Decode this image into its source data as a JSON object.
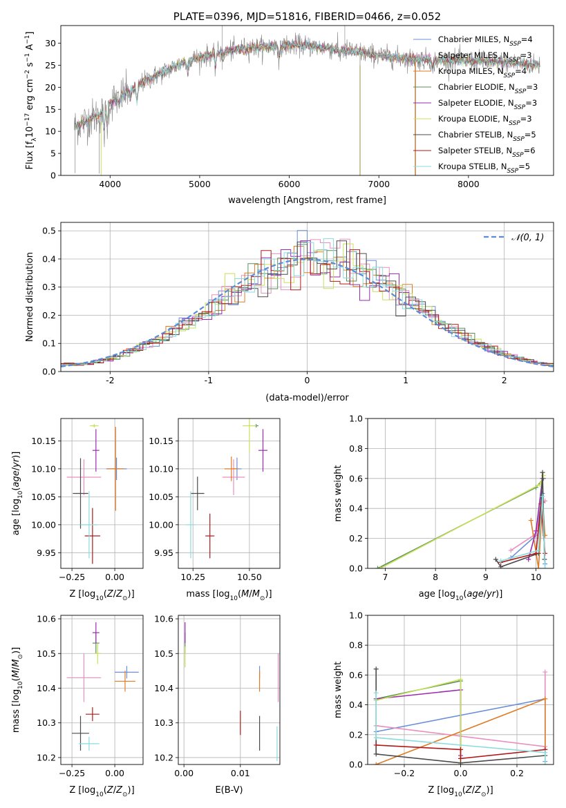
{
  "chart_data": [
    {
      "id": "spectrum",
      "type": "line",
      "title": "PLATE=0396, MJD=51816, FIBERID=0466, z=0.052",
      "xlabel": "wavelength [Angstrom, rest frame]",
      "ylabel": "Flux [f",
      "ylabel_parts": [
        "Flux [f",
        "λ",
        "10",
        "−17",
        " erg cm",
        "−2",
        " s",
        "−1",
        " A",
        "−1",
        "]"
      ],
      "xlim": [
        3450,
        8950
      ],
      "ylim": [
        0,
        34
      ],
      "xticks": [
        4000,
        5000,
        6000,
        7000,
        8000
      ],
      "yticks": [
        0,
        5,
        10,
        15,
        20,
        25,
        30
      ],
      "continuum_anchors": [
        [
          3600,
          11
        ],
        [
          3800,
          13
        ],
        [
          3900,
          14
        ],
        [
          4000,
          16.5
        ],
        [
          4200,
          19
        ],
        [
          4400,
          21.5
        ],
        [
          4600,
          23.5
        ],
        [
          4800,
          25.5
        ],
        [
          5000,
          26.8
        ],
        [
          5200,
          27.8
        ],
        [
          5500,
          28.8
        ],
        [
          5800,
          29.3
        ],
        [
          6100,
          29.6
        ],
        [
          6400,
          29.0
        ],
        [
          6700,
          28.2
        ],
        [
          7000,
          27.2
        ],
        [
          7300,
          26.5
        ],
        [
          7600,
          26.2
        ],
        [
          8000,
          26.0
        ],
        [
          8400,
          25.6
        ],
        [
          8800,
          25.0
        ]
      ],
      "absorption_features": [
        [
          3933,
          5
        ],
        [
          3968,
          4
        ],
        [
          4101,
          2.5
        ],
        [
          4227,
          2
        ],
        [
          4300,
          4
        ],
        [
          4861,
          2
        ],
        [
          5175,
          3
        ],
        [
          5270,
          1.5
        ],
        [
          5890,
          3
        ],
        [
          6563,
          1.5
        ],
        [
          7600,
          2.5
        ]
      ],
      "legend": [
        {
          "label": "Chabrier MILES, N",
          "sub": "SSP",
          "value": "=4",
          "color": "#6a8fd8"
        },
        {
          "label": "Salpeter MILES, N",
          "sub": "SSP",
          "value": "=3",
          "color": "#e88fbf"
        },
        {
          "label": "Kroupa MILES, N",
          "sub": "SSP",
          "value": "=4",
          "color": "#e07b25"
        },
        {
          "label": "Chabrier ELODIE, N",
          "sub": "SSP",
          "value": "=3",
          "color": "#5a8f5a"
        },
        {
          "label": "Salpeter ELODIE, N",
          "sub": "SSP",
          "value": "=3",
          "color": "#9a2ab0"
        },
        {
          "label": "Kroupa ELODIE, N",
          "sub": "SSP",
          "value": "=3",
          "color": "#c8e05a"
        },
        {
          "label": "Chabrier STELIB, N",
          "sub": "SSP",
          "value": "=5",
          "color": "#4a4a4a"
        },
        {
          "label": "Salpeter STELIB, N",
          "sub": "SSP",
          "value": "=6",
          "color": "#b01818"
        },
        {
          "label": "Kroupa STELIB, N",
          "sub": "SSP",
          "value": "=5",
          "color": "#8adcdc"
        }
      ],
      "legend_position": "upper right"
    },
    {
      "id": "residuals",
      "type": "histogram",
      "xlabel": "(data-model)/error",
      "ylabel": "Normed distribution",
      "xlim": [
        -2.5,
        2.5
      ],
      "ylim": [
        0,
        0.53
      ],
      "xticks": [
        -2,
        -1,
        0,
        1,
        2
      ],
      "yticks": [
        0.0,
        0.1,
        0.2,
        0.3,
        0.4,
        0.5
      ],
      "bin_width": 0.1,
      "reference_label": "𝒩(0, 1)",
      "reference_color": "#5b8bd6",
      "legend_position": "upper right",
      "grid": true
    },
    {
      "id": "age-vs-Z",
      "type": "errorbar",
      "xlabel": "Z [log10(Z/Z⊙)]",
      "ylabel": "age  [log10(age/yr)]",
      "xlim": [
        -0.315,
        0.165
      ],
      "ylim": [
        9.922,
        10.19
      ],
      "xticks": [
        -0.25,
        0.0
      ],
      "xtick_labels": [
        "−0.25",
        "0.00"
      ],
      "yticks": [
        9.95,
        10.0,
        10.05,
        10.1,
        10.15
      ],
      "yticklabels": [
        "9.95",
        "10.00",
        "10.05",
        "10.10",
        "10.15"
      ],
      "points": [
        {
          "x": 0.01,
          "y": 10.1,
          "xerr": 0.06,
          "yerr": 0.02,
          "color": "#6a8fd8"
        },
        {
          "x": -0.18,
          "y": 10.085,
          "xerr": 0.1,
          "yerr": 0.032,
          "color": "#e88fbf"
        },
        {
          "x": 0.005,
          "y": 10.1,
          "xerr": 0.05,
          "yerr": 0.075,
          "color": "#e07b25"
        },
        {
          "x": -0.12,
          "y": 10.177,
          "xerr": 0.01,
          "yerr": 0.0,
          "color": "#5a8f5a"
        },
        {
          "x": -0.11,
          "y": 10.133,
          "xerr": 0.02,
          "yerr": 0.038,
          "color": "#9a2ab0"
        },
        {
          "x": -0.12,
          "y": 10.177,
          "xerr": 0.025,
          "yerr": 0.003,
          "color": "#c8e05a"
        },
        {
          "x": -0.2,
          "y": 10.056,
          "xerr": 0.045,
          "yerr": 0.063,
          "color": "#4a4a4a"
        },
        {
          "x": -0.13,
          "y": 9.98,
          "xerr": 0.045,
          "yerr": 0.05,
          "color": "#b01818"
        },
        {
          "x": -0.15,
          "y": 10.0,
          "xerr": 0.05,
          "yerr": 0.06,
          "color": "#8adcdc"
        }
      ]
    },
    {
      "id": "age-vs-mass",
      "type": "errorbar",
      "xlabel": "mass [log10(M/M⊙)]",
      "ylabel": "",
      "xlim": [
        10.185,
        10.635
      ],
      "ylim": [
        9.922,
        10.19
      ],
      "xticks": [
        10.25,
        10.5
      ],
      "xtick_labels": [
        "10.25",
        "10.50"
      ],
      "yticks": [
        9.95,
        10.0,
        10.05,
        10.1,
        10.15
      ],
      "yticklabels": [
        "9.95",
        "10.00",
        "10.05",
        "10.10",
        "10.15"
      ],
      "points": [
        {
          "x": 10.445,
          "y": 10.1,
          "xerr": 0.02,
          "yerr": 0.02,
          "color": "#6a8fd8"
        },
        {
          "x": 10.43,
          "y": 10.085,
          "xerr": 0.05,
          "yerr": 0.032,
          "color": "#e88fbf"
        },
        {
          "x": 10.42,
          "y": 10.1,
          "xerr": 0.03,
          "yerr": 0.022,
          "color": "#e07b25"
        },
        {
          "x": 10.53,
          "y": 10.177,
          "xerr": 0.01,
          "yerr": 0.003,
          "color": "#5a8f5a"
        },
        {
          "x": 10.56,
          "y": 10.133,
          "xerr": 0.02,
          "yerr": 0.038,
          "color": "#9a2ab0"
        },
        {
          "x": 10.5,
          "y": 10.177,
          "xerr": 0.03,
          "yerr": 0.047,
          "color": "#c8e05a"
        },
        {
          "x": 10.27,
          "y": 10.056,
          "xerr": 0.03,
          "yerr": 0.03,
          "color": "#4a4a4a"
        },
        {
          "x": 10.325,
          "y": 9.98,
          "xerr": 0.02,
          "yerr": 0.04,
          "color": "#b01818"
        },
        {
          "x": 10.24,
          "y": 10.0,
          "xerr": 0.02,
          "yerr": 0.06,
          "color": "#8adcdc"
        }
      ]
    },
    {
      "id": "mass-weight-vs-age",
      "type": "line",
      "xlabel": "age  [log10(age/yr)]",
      "ylabel": "mass weight",
      "xlim": [
        6.65,
        10.35
      ],
      "ylim": [
        0,
        1
      ],
      "xticks": [
        7,
        8,
        9,
        10
      ],
      "xtick_labels": [
        "7",
        "8",
        "9",
        "10"
      ],
      "yticks": [
        0.0,
        0.2,
        0.4,
        0.6,
        0.8,
        1.0
      ],
      "series": [
        {
          "color": "#6a8fd8",
          "points": [
            [
              9.5,
              0.07
            ],
            [
              10.0,
              0.22
            ],
            [
              10.13,
              0.5
            ],
            [
              10.18,
              0.03
            ]
          ]
        },
        {
          "color": "#e88fbf",
          "points": [
            [
              9.5,
              0.12
            ],
            [
              10.0,
              0.23
            ],
            [
              10.13,
              0.44
            ],
            [
              10.18,
              0.45
            ]
          ]
        },
        {
          "color": "#e07b25",
          "points": [
            [
              9.9,
              0.32
            ],
            [
              10.05,
              0.0
            ],
            [
              10.13,
              0.44
            ],
            [
              10.18,
              0.22
            ]
          ]
        },
        {
          "color": "#5a8f5a",
          "points": [
            [
              6.85,
              0.0
            ],
            [
              10.0,
              0.54
            ],
            [
              10.15,
              0.6
            ]
          ]
        },
        {
          "color": "#9a2ab0",
          "points": [
            [
              9.85,
              0.06
            ],
            [
              10.0,
              0.25
            ],
            [
              10.13,
              0.6
            ]
          ]
        },
        {
          "color": "#c8e05a",
          "points": [
            [
              6.9,
              0.0
            ],
            [
              10.08,
              0.56
            ],
            [
              10.15,
              0.62
            ]
          ]
        },
        {
          "color": "#4a4a4a",
          "points": [
            [
              9.2,
              0.06
            ],
            [
              9.3,
              0.01
            ],
            [
              10.05,
              0.1
            ],
            [
              10.13,
              0.64
            ],
            [
              10.17,
              0.06
            ]
          ]
        },
        {
          "color": "#b01818",
          "points": [
            [
              9.3,
              0.04
            ],
            [
              10.0,
              0.1
            ],
            [
              10.1,
              0.43
            ],
            [
              10.18,
              0.1
            ]
          ]
        },
        {
          "color": "#8adcdc",
          "points": [
            [
              9.3,
              0.05
            ],
            [
              10.05,
              0.12
            ],
            [
              10.13,
              0.48
            ],
            [
              10.18,
              0.0
            ]
          ]
        }
      ]
    },
    {
      "id": "mass-vs-Z",
      "type": "errorbar",
      "xlabel": "Z [log10(Z/Z⊙)]",
      "ylabel": "mass [log10(M/M⊙)]",
      "xlim": [
        -0.315,
        0.165
      ],
      "ylim": [
        10.18,
        10.61
      ],
      "xticks": [
        -0.25,
        0.0
      ],
      "xtick_labels": [
        "−0.25",
        "0.00"
      ],
      "yticks": [
        10.2,
        10.3,
        10.4,
        10.5,
        10.6
      ],
      "yticklabels": [
        "10.2",
        "10.3",
        "10.4",
        "10.5",
        "10.6"
      ],
      "points": [
        {
          "x": 0.07,
          "y": 10.446,
          "xerr": 0.07,
          "yerr": 0.018,
          "color": "#6a8fd8"
        },
        {
          "x": -0.18,
          "y": 10.43,
          "xerr": 0.1,
          "yerr": 0.07,
          "color": "#e88fbf"
        },
        {
          "x": 0.06,
          "y": 10.42,
          "xerr": 0.06,
          "yerr": 0.03,
          "color": "#e07b25"
        },
        {
          "x": -0.11,
          "y": 10.53,
          "xerr": 0.02,
          "yerr": 0.03,
          "color": "#5a8f5a"
        },
        {
          "x": -0.11,
          "y": 10.56,
          "xerr": 0.02,
          "yerr": 0.03,
          "color": "#9a2ab0"
        },
        {
          "x": -0.1,
          "y": 10.5,
          "xerr": 0.02,
          "yerr": 0.03,
          "color": "#c8e05a"
        },
        {
          "x": -0.2,
          "y": 10.27,
          "xerr": 0.05,
          "yerr": 0.05,
          "color": "#4a4a4a"
        },
        {
          "x": -0.13,
          "y": 10.325,
          "xerr": 0.04,
          "yerr": 0.02,
          "color": "#b01818"
        },
        {
          "x": -0.15,
          "y": 10.24,
          "xerr": 0.06,
          "yerr": 0.02,
          "color": "#8adcdc"
        }
      ]
    },
    {
      "id": "mass-vs-EBV",
      "type": "errorbar",
      "xlabel": "E(B-V)",
      "ylabel": "",
      "xlim": [
        -0.001,
        0.017
      ],
      "ylim": [
        10.18,
        10.61
      ],
      "xticks": [
        0.0,
        0.01
      ],
      "xtick_labels": [
        "0.00",
        "0.01"
      ],
      "yticks": [
        10.2,
        10.3,
        10.4,
        10.5,
        10.6
      ],
      "yticklabels": [
        "10.2",
        "10.3",
        "10.4",
        "10.5",
        "10.6"
      ],
      "points": [
        {
          "x": 0.0134,
          "y": 10.446,
          "xerr": 0,
          "yerr": 0.018,
          "color": "#6a8fd8"
        },
        {
          "x": 0.0167,
          "y": 10.43,
          "xerr": 0,
          "yerr": 0.07,
          "color": "#e88fbf"
        },
        {
          "x": 0.0134,
          "y": 10.42,
          "xerr": 0,
          "yerr": 0.03,
          "color": "#e07b25"
        },
        {
          "x": 0.0002,
          "y": 10.53,
          "xerr": 0,
          "yerr": 0.03,
          "color": "#5a8f5a"
        },
        {
          "x": 0.0002,
          "y": 10.56,
          "xerr": 0,
          "yerr": 0.03,
          "color": "#9a2ab0"
        },
        {
          "x": 0.0002,
          "y": 10.49,
          "xerr": 0,
          "yerr": 0.03,
          "color": "#c8e05a"
        },
        {
          "x": 0.0134,
          "y": 10.27,
          "xerr": 0,
          "yerr": 0.05,
          "color": "#4a4a4a"
        },
        {
          "x": 0.01,
          "y": 10.3,
          "xerr": 0,
          "yerr": 0.035,
          "color": "#b01818"
        },
        {
          "x": 0.0165,
          "y": 10.24,
          "xerr": 0,
          "yerr": 0.05,
          "color": "#8adcdc"
        }
      ]
    },
    {
      "id": "mass-weight-vs-Z",
      "type": "line",
      "xlabel": "Z [log10(Z/Z⊙)]",
      "ylabel": "mass weight",
      "xlim": [
        -0.33,
        0.33
      ],
      "ylim": [
        0,
        1
      ],
      "xticks": [
        -0.2,
        0.0,
        0.2
      ],
      "xtick_labels": [
        "−0.2",
        "0.0",
        "0.2"
      ],
      "yticks": [
        0.0,
        0.2,
        0.4,
        0.6,
        0.8,
        1.0
      ],
      "series": [
        {
          "color": "#6a8fd8",
          "points": [
            [
              -0.3,
              0.22
            ],
            [
              0.3,
              0.44
            ],
            [
              0.3,
              0.02
            ]
          ]
        },
        {
          "color": "#e88fbf",
          "points": [
            [
              -0.3,
              0.26
            ],
            [
              0.3,
              0.12
            ],
            [
              0.3,
              0.62
            ]
          ]
        },
        {
          "color": "#e07b25",
          "points": [
            [
              -0.3,
              0.0
            ],
            [
              0.3,
              0.44
            ],
            [
              0.3,
              0.1
            ]
          ]
        },
        {
          "color": "#5a8f5a",
          "points": [
            [
              -0.3,
              0.44
            ],
            [
              0.0,
              0.56
            ],
            [
              0.0,
              0.0
            ]
          ]
        },
        {
          "color": "#9a2ab0",
          "points": [
            [
              -0.3,
              0.44
            ],
            [
              0.0,
              0.5
            ],
            [
              0.0,
              0.06
            ]
          ]
        },
        {
          "color": "#c8e05a",
          "points": [
            [
              -0.3,
              0.43
            ],
            [
              0.0,
              0.57
            ],
            [
              0.0,
              0.0
            ]
          ]
        },
        {
          "color": "#4a4a4a",
          "points": [
            [
              -0.3,
              0.64
            ],
            [
              -0.3,
              0.07
            ],
            [
              0.0,
              0.01
            ],
            [
              0.3,
              0.06
            ]
          ]
        },
        {
          "color": "#b01818",
          "points": [
            [
              -0.3,
              0.13
            ],
            [
              0.0,
              0.1
            ],
            [
              0.0,
              0.04
            ],
            [
              0.3,
              0.1
            ]
          ]
        },
        {
          "color": "#8adcdc",
          "points": [
            [
              -0.3,
              0.48
            ],
            [
              -0.3,
              0.18
            ],
            [
              0.3,
              0.08
            ],
            [
              0.3,
              0.0
            ]
          ]
        }
      ]
    }
  ]
}
